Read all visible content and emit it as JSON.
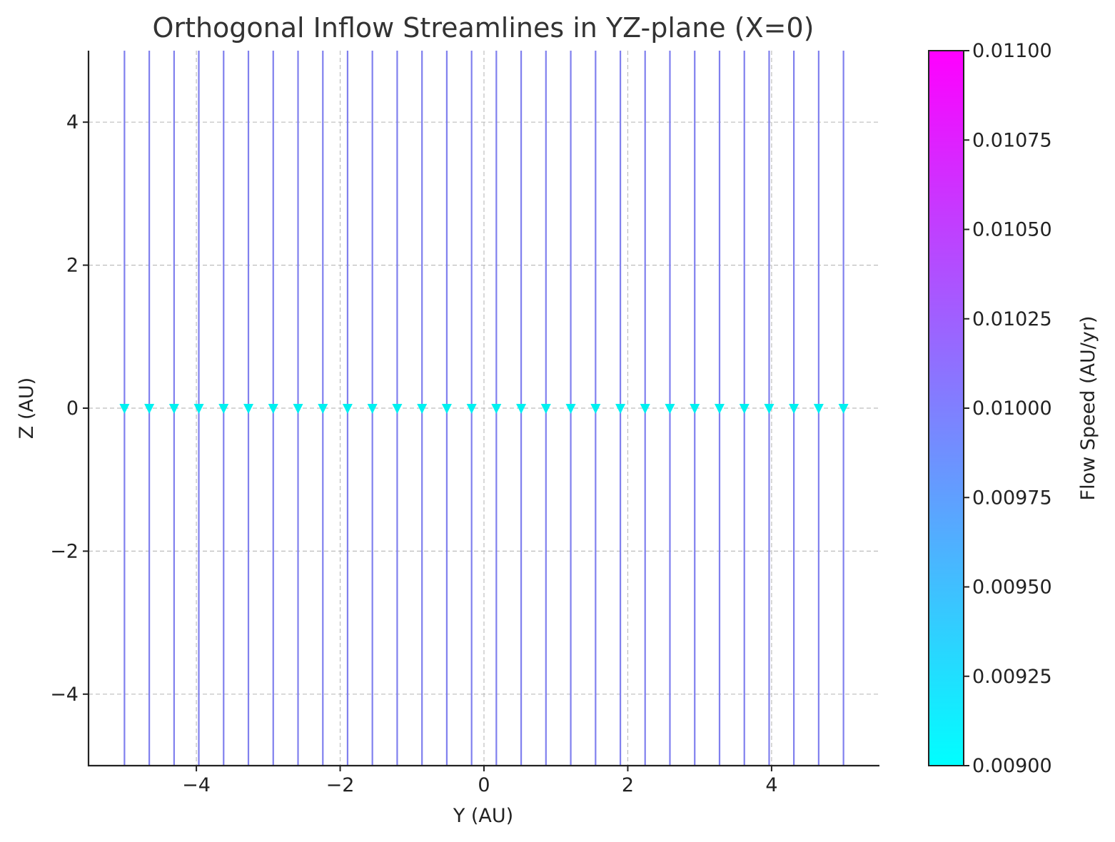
{
  "chart_data": {
    "type": "streamplot",
    "title": "Orthogonal Inflow Streamlines in YZ-plane (X=0)",
    "xlabel": "Y (AU)",
    "ylabel": "Z (AU)",
    "xlim": [
      -5.5,
      5.5
    ],
    "ylim": [
      -5,
      5
    ],
    "xticks": [
      -4,
      -2,
      0,
      2,
      4
    ],
    "yticks": [
      -4,
      -2,
      0,
      2,
      4
    ],
    "xtick_labels": [
      "−4",
      "−2",
      "0",
      "2",
      "4"
    ],
    "ytick_labels": [
      "−4",
      "−2",
      "0",
      "2",
      "4"
    ],
    "grid": true,
    "streamlines": {
      "y_positions": [
        -5.0,
        -4.655,
        -4.31,
        -3.966,
        -3.621,
        -3.276,
        -2.931,
        -2.586,
        -2.241,
        -1.897,
        -1.552,
        -1.207,
        -0.862,
        -0.517,
        -0.172,
        0.172,
        0.517,
        0.862,
        1.207,
        1.552,
        1.897,
        2.241,
        2.586,
        2.931,
        3.276,
        3.621,
        3.966,
        4.31,
        4.655,
        5.0
      ],
      "z_range": [
        -5,
        5
      ],
      "direction": "down",
      "arrow_z": 0,
      "line_color": "#8080ee",
      "arrow_color": "#00f0f0"
    },
    "colorbar": {
      "label": "Flow Speed (AU/yr)",
      "colormap": "cool",
      "vmin": 0.009,
      "vmax": 0.011,
      "ticks": [
        0.009,
        0.00925,
        0.0095,
        0.00975,
        0.01,
        0.01025,
        0.0105,
        0.01075,
        0.011
      ],
      "tick_labels": [
        "0.00900",
        "0.00925",
        "0.00950",
        "0.00975",
        "0.01000",
        "0.01025",
        "0.01050",
        "0.01075",
        "0.01100"
      ],
      "color_low": "#00ffff",
      "color_high": "#ff00ff"
    }
  }
}
